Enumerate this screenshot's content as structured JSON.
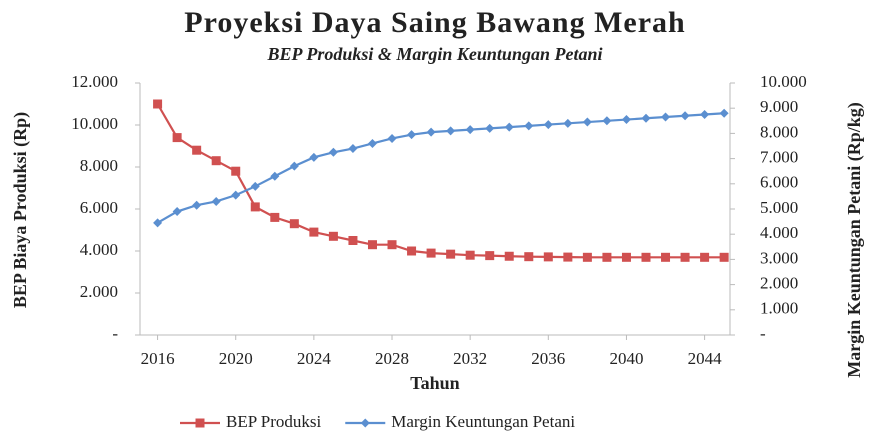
{
  "chart_data": {
    "type": "line",
    "title": "Proyeksi Daya Saing Bawang Merah",
    "subtitle": "BEP Produksi & Margin Keuntungan Petani",
    "xlabel": "Tahun",
    "ylabel": "BEP Biaya Produksi (Rp)",
    "y2label": "Margin Keuntungan Petani (Rp/kg)",
    "x": [
      2016,
      2017,
      2018,
      2019,
      2020,
      2021,
      2022,
      2023,
      2024,
      2025,
      2026,
      2027,
      2028,
      2029,
      2030,
      2031,
      2032,
      2033,
      2034,
      2035,
      2036,
      2037,
      2038,
      2039,
      2040,
      2041,
      2042,
      2043,
      2044,
      2045
    ],
    "xlim": [
      2015.1,
      2045.3
    ],
    "xticks": [
      2016,
      2020,
      2024,
      2028,
      2032,
      2036,
      2040,
      2044
    ],
    "ylim": [
      0,
      12000
    ],
    "yticks": [
      {
        "value": 0,
        "label": "-"
      },
      {
        "value": 2000,
        "label": "2.000"
      },
      {
        "value": 4000,
        "label": "4.000"
      },
      {
        "value": 6000,
        "label": "6.000"
      },
      {
        "value": 8000,
        "label": "8.000"
      },
      {
        "value": 10000,
        "label": "10.000"
      },
      {
        "value": 12000,
        "label": "12.000"
      }
    ],
    "y2lim": [
      0,
      10000
    ],
    "y2ticks": [
      {
        "value": 0,
        "label": "-"
      },
      {
        "value": 1000,
        "label": "1.000"
      },
      {
        "value": 2000,
        "label": "2.000"
      },
      {
        "value": 3000,
        "label": "3.000"
      },
      {
        "value": 4000,
        "label": "4.000"
      },
      {
        "value": 5000,
        "label": "5.000"
      },
      {
        "value": 6000,
        "label": "6.000"
      },
      {
        "value": 7000,
        "label": "7.000"
      },
      {
        "value": 8000,
        "label": "8.000"
      },
      {
        "value": 9000,
        "label": "9.000"
      },
      {
        "value": 10000,
        "label": "10.000"
      }
    ],
    "grid": false,
    "legend": "bottom",
    "series": [
      {
        "name": "BEP Produksi",
        "color": "#d05050",
        "marker": "square",
        "values": [
          11000,
          9400,
          8800,
          8300,
          7800,
          6100,
          5600,
          5300,
          4900,
          4700,
          4500,
          4300,
          4300,
          4000,
          3900,
          3850,
          3800,
          3780,
          3750,
          3730,
          3720,
          3710,
          3700,
          3700,
          3700,
          3700,
          3700,
          3700,
          3700,
          3700
        ]
      },
      {
        "name": "Margin Keuntungan Petani",
        "color": "#5b8fd0",
        "marker": "diamond",
        "axis": "y2",
        "values": [
          4450,
          4900,
          5150,
          5300,
          5550,
          5900,
          6300,
          6700,
          7050,
          7250,
          7400,
          7600,
          7800,
          7950,
          8050,
          8100,
          8150,
          8200,
          8250,
          8300,
          8350,
          8400,
          8450,
          8500,
          8550,
          8600,
          8650,
          8700,
          8750,
          8800
        ]
      }
    ]
  }
}
